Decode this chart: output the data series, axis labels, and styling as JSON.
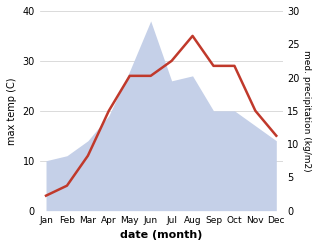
{
  "months": [
    "Jan",
    "Feb",
    "Mar",
    "Apr",
    "May",
    "Jun",
    "Jul",
    "Aug",
    "Sep",
    "Oct",
    "Nov",
    "Dec"
  ],
  "temperature": [
    3,
    5,
    11,
    20,
    27,
    27,
    30,
    35,
    29,
    29,
    20,
    15
  ],
  "precipitation_left": [
    10,
    11,
    14,
    19,
    28,
    38,
    26,
    27,
    20,
    20,
    17,
    14
  ],
  "temp_color": "#c0392b",
  "precip_fill_color": "#c5d0e8",
  "temp_ylim": [
    0,
    40
  ],
  "precip_ylim": [
    0,
    30
  ],
  "temp_yticks": [
    0,
    10,
    20,
    30,
    40
  ],
  "precip_yticks": [
    0,
    5,
    10,
    15,
    20,
    25,
    30
  ],
  "xlabel": "date (month)",
  "ylabel_left": "max temp (C)",
  "ylabel_right": "med. precipitation (kg/m2)",
  "background_color": "#ffffff"
}
